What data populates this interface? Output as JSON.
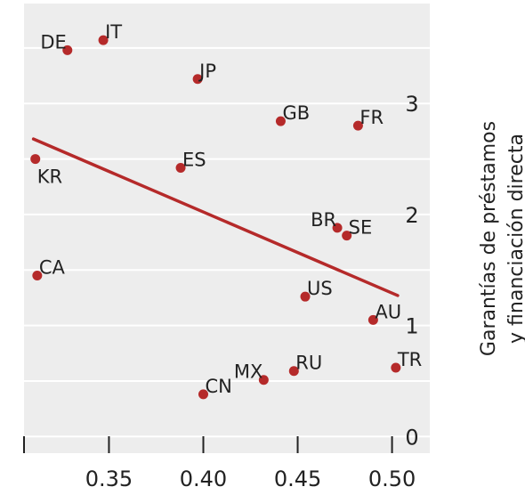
{
  "chart_data": {
    "type": "scatter",
    "title": "",
    "xlabel": "",
    "ylabel": "Garantías de préstamos y financiación directa",
    "xlim": [
      0.305,
      0.52
    ],
    "ylim": [
      -0.15,
      3.9
    ],
    "x_ticks": [
      0.35,
      0.4,
      0.45,
      0.5
    ],
    "x_tick_labels": [
      "0.35",
      "0.40",
      "0.45",
      "0.50"
    ],
    "y_ticks": [
      0,
      1,
      2,
      3
    ],
    "y_tick_labels": [
      "0",
      "1",
      "2",
      "3"
    ],
    "grid": "horizontal",
    "legend": "none",
    "colors": {
      "point": "#b52a2a",
      "line": "#b52a2a",
      "panel": "#ededed",
      "grid": "#ffffff",
      "axis": "#222222"
    },
    "points": [
      {
        "label": "DE",
        "x": 0.328,
        "y": 3.48,
        "label_pos": "left"
      },
      {
        "label": "IT",
        "x": 0.347,
        "y": 3.57,
        "label_pos": "right"
      },
      {
        "label": "JP",
        "x": 0.397,
        "y": 3.22,
        "label_pos": "right"
      },
      {
        "label": "GB",
        "x": 0.441,
        "y": 2.84,
        "label_pos": "right"
      },
      {
        "label": "FR",
        "x": 0.482,
        "y": 2.8,
        "label_pos": "right"
      },
      {
        "label": "KR",
        "x": 0.311,
        "y": 2.5,
        "label_pos": "below"
      },
      {
        "label": "ES",
        "x": 0.388,
        "y": 2.42,
        "label_pos": "right"
      },
      {
        "label": "BR",
        "x": 0.471,
        "y": 1.88,
        "label_pos": "left"
      },
      {
        "label": "SE",
        "x": 0.476,
        "y": 1.81,
        "label_pos": "right"
      },
      {
        "label": "CA",
        "x": 0.312,
        "y": 1.45,
        "label_pos": "right"
      },
      {
        "label": "US",
        "x": 0.454,
        "y": 1.26,
        "label_pos": "right"
      },
      {
        "label": "AU",
        "x": 0.49,
        "y": 1.05,
        "label_pos": "right"
      },
      {
        "label": "TR",
        "x": 0.502,
        "y": 0.62,
        "label_pos": "right"
      },
      {
        "label": "RU",
        "x": 0.448,
        "y": 0.59,
        "label_pos": "right"
      },
      {
        "label": "MX",
        "x": 0.432,
        "y": 0.51,
        "label_pos": "left"
      },
      {
        "label": "CN",
        "x": 0.4,
        "y": 0.38,
        "label_pos": "right"
      }
    ],
    "trend_line": {
      "x": [
        0.31,
        0.503
      ],
      "y": [
        2.68,
        1.27
      ]
    }
  }
}
